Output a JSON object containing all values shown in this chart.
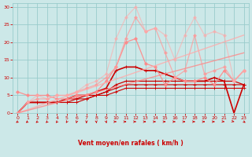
{
  "bg_color": "#cce8e8",
  "grid_color": "#99cccc",
  "text_color": "#cc0000",
  "xlabel": "Vent moyen/en rafales ( km/h )",
  "xlim": [
    -0.5,
    23.5
  ],
  "ylim": [
    0,
    31
  ],
  "xticks": [
    0,
    1,
    2,
    3,
    4,
    5,
    6,
    7,
    8,
    9,
    10,
    11,
    12,
    13,
    14,
    15,
    16,
    17,
    18,
    19,
    20,
    21,
    22,
    23
  ],
  "yticks": [
    0,
    5,
    10,
    15,
    20,
    25,
    30
  ],
  "series": [
    {
      "x": [
        0,
        1,
        2,
        3,
        4,
        5,
        6,
        7,
        8,
        9,
        10,
        11,
        12,
        13,
        14,
        15,
        16,
        17,
        18,
        19,
        20,
        21,
        22,
        23
      ],
      "y": [
        0,
        3,
        3,
        3,
        3,
        3,
        3,
        4,
        5,
        5,
        6,
        7,
        7,
        7,
        7,
        7,
        7,
        7,
        7,
        7,
        7,
        7,
        7,
        7
      ],
      "color": "#cc0000",
      "lw": 0.8,
      "marker": "+",
      "ms": 2.5,
      "alpha": 1.0
    },
    {
      "x": [
        0,
        1,
        2,
        3,
        4,
        5,
        6,
        7,
        8,
        9,
        10,
        11,
        12,
        13,
        14,
        15,
        16,
        17,
        18,
        19,
        20,
        21,
        22,
        23
      ],
      "y": [
        0,
        3,
        3,
        3,
        3,
        3,
        4,
        4,
        5,
        6,
        7,
        8,
        8,
        8,
        8,
        8,
        8,
        8,
        8,
        8,
        8,
        8,
        8,
        8
      ],
      "color": "#cc0000",
      "lw": 0.8,
      "marker": "+",
      "ms": 2.5,
      "alpha": 1.0
    },
    {
      "x": [
        0,
        1,
        2,
        3,
        4,
        5,
        6,
        7,
        8,
        9,
        10,
        11,
        12,
        13,
        14,
        15,
        16,
        17,
        18,
        19,
        20,
        21,
        22,
        23
      ],
      "y": [
        0,
        3,
        3,
        3,
        3,
        4,
        4,
        5,
        5,
        6,
        8,
        9,
        9,
        9,
        9,
        9,
        9,
        9,
        9,
        9,
        9,
        9,
        9,
        8
      ],
      "color": "#cc0000",
      "lw": 0.9,
      "marker": "+",
      "ms": 2.5,
      "alpha": 1.0
    },
    {
      "x": [
        0,
        1,
        2,
        3,
        4,
        5,
        6,
        7,
        8,
        9,
        10,
        11,
        12,
        13,
        14,
        15,
        16,
        17,
        18,
        19,
        20,
        21,
        22,
        23
      ],
      "y": [
        0,
        3,
        3,
        3,
        3,
        4,
        5,
        5,
        6,
        7,
        12,
        13,
        13,
        12,
        12,
        11,
        10,
        9,
        9,
        9,
        10,
        9,
        0,
        8
      ],
      "color": "#cc0000",
      "lw": 1.2,
      "marker": "+",
      "ms": 3,
      "alpha": 1.0
    },
    {
      "x": [
        0,
        1,
        2,
        3,
        4,
        5,
        6,
        7,
        8,
        9,
        10,
        11,
        12,
        13,
        14,
        15,
        16,
        17,
        18,
        19,
        20,
        21,
        22,
        23
      ],
      "y": [
        6,
        5,
        5,
        5,
        4,
        4,
        5,
        5,
        6,
        9,
        13,
        20,
        21,
        14,
        13,
        8,
        10,
        9,
        9,
        10,
        8,
        12,
        9,
        12
      ],
      "color": "#ff8888",
      "lw": 0.9,
      "marker": "D",
      "ms": 2,
      "alpha": 0.9
    },
    {
      "x": [
        0,
        1,
        2,
        3,
        4,
        5,
        6,
        7,
        8,
        9,
        10,
        11,
        12,
        13,
        14,
        15,
        16,
        17,
        18,
        19,
        20,
        21,
        22,
        23
      ],
      "y": [
        0,
        3,
        4,
        4,
        5,
        5,
        6,
        7,
        8,
        10,
        13,
        21,
        27,
        23,
        24,
        17,
        10,
        12,
        22,
        11,
        12,
        13,
        9,
        12
      ],
      "color": "#ff9999",
      "lw": 0.9,
      "marker": "D",
      "ms": 2,
      "alpha": 0.75
    },
    {
      "x": [
        0,
        1,
        2,
        3,
        4,
        5,
        6,
        7,
        8,
        9,
        10,
        11,
        12,
        13,
        14,
        15,
        16,
        17,
        18,
        19,
        20,
        21,
        22,
        23
      ],
      "y": [
        0,
        3,
        5,
        4,
        5,
        5,
        6,
        8,
        9,
        11,
        21,
        27,
        30,
        23,
        24,
        22,
        15,
        22,
        27,
        22,
        23,
        22,
        9,
        12
      ],
      "color": "#ffaaaa",
      "lw": 0.9,
      "marker": "D",
      "ms": 2,
      "alpha": 0.6
    },
    {
      "x": [
        0,
        23
      ],
      "y": [
        0,
        22
      ],
      "color": "#ffaaaa",
      "lw": 1.0,
      "marker": null,
      "ms": 0,
      "alpha": 0.8
    },
    {
      "x": [
        0,
        23
      ],
      "y": [
        0,
        17
      ],
      "color": "#ff8888",
      "lw": 1.0,
      "marker": null,
      "ms": 0,
      "alpha": 0.8
    }
  ],
  "wind_arrows": {
    "x": [
      0,
      1,
      2,
      3,
      4,
      5,
      6,
      7,
      8,
      9,
      10,
      11,
      12,
      13,
      14,
      15,
      16,
      17,
      18,
      19,
      20,
      21,
      22,
      23
    ],
    "angles_deg": [
      225,
      225,
      220,
      215,
      210,
      200,
      190,
      180,
      175,
      170,
      90,
      90,
      90,
      90,
      90,
      90,
      90,
      90,
      90,
      90,
      90,
      100,
      110,
      135
    ]
  }
}
